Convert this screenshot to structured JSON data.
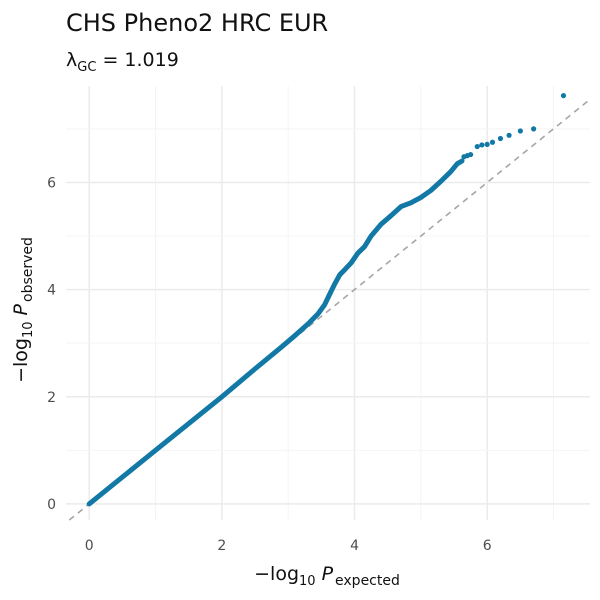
{
  "chart_data": {
    "type": "scatter",
    "title": "CHS Pheno2 HRC EUR",
    "subtitle": {
      "lambda_symbol": "λ",
      "lambda_subscript": "GC",
      "equals": " = ",
      "value": "1.019"
    },
    "xlabel": {
      "prefix": "−log",
      "base": "10",
      "variable": "P",
      "subscript": "expected"
    },
    "ylabel": {
      "prefix": "−log",
      "base": "10",
      "variable": "P",
      "subscript": "observed"
    },
    "xlim": [
      -0.35,
      7.55
    ],
    "ylim": [
      -0.3,
      7.8
    ],
    "x_ticks": [
      0,
      2,
      4,
      6
    ],
    "x_tick_labels": [
      "0",
      "2",
      "4",
      "6"
    ],
    "y_ticks": [
      0,
      2,
      4,
      6
    ],
    "y_tick_labels": [
      "0",
      "2",
      "4",
      "6"
    ],
    "grid": true,
    "reference_line": "y = x",
    "point_color": "#1279a6",
    "reference_color": "#a6a6a6",
    "curve": {
      "x": [
        0,
        0.5,
        1,
        1.5,
        2,
        2.5,
        2.9,
        3.1,
        3.3,
        3.45,
        3.55,
        3.62,
        3.7,
        3.78,
        3.86,
        3.95,
        4.05,
        4.15,
        4.25,
        4.4,
        4.55,
        4.7,
        4.85,
        5.0,
        5.15,
        5.3,
        5.45,
        5.55,
        5.62
      ],
      "y": [
        0,
        0.5,
        1.0,
        1.5,
        2.0,
        2.52,
        2.93,
        3.14,
        3.36,
        3.55,
        3.72,
        3.9,
        4.1,
        4.28,
        4.38,
        4.5,
        4.68,
        4.8,
        5.0,
        5.22,
        5.38,
        5.55,
        5.62,
        5.72,
        5.85,
        6.02,
        6.2,
        6.35,
        6.4
      ]
    },
    "points": [
      {
        "x": 5.65,
        "y": 6.48
      },
      {
        "x": 5.7,
        "y": 6.5
      },
      {
        "x": 5.75,
        "y": 6.52
      },
      {
        "x": 5.85,
        "y": 6.67
      },
      {
        "x": 5.92,
        "y": 6.7
      },
      {
        "x": 6.0,
        "y": 6.71
      },
      {
        "x": 6.08,
        "y": 6.75
      },
      {
        "x": 6.2,
        "y": 6.82
      },
      {
        "x": 6.33,
        "y": 6.88
      },
      {
        "x": 6.5,
        "y": 6.96
      },
      {
        "x": 6.7,
        "y": 7.0
      },
      {
        "x": 7.15,
        "y": 7.62
      }
    ]
  }
}
